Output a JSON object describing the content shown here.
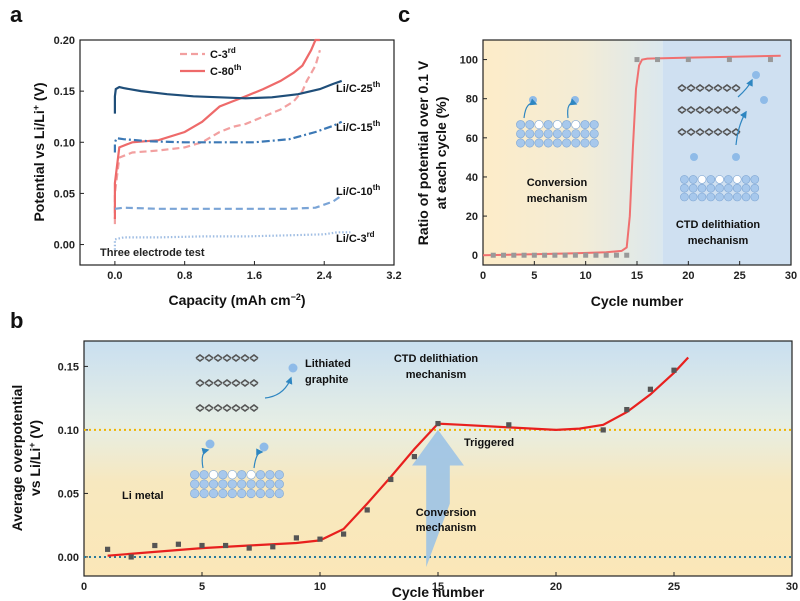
{
  "panel_labels": {
    "a": "a",
    "b": "b",
    "c": "c"
  },
  "colors": {
    "pink_dashed": "#f2a0a0",
    "red_solid": "#ee6a6a",
    "dark_blue": "#1f4e79",
    "mid_blue": "#3b78b5",
    "light_blue": "#7aa4d6",
    "very_light_blue": "#9fbde3",
    "fit_red": "#e8201e",
    "scatter_grey": "#555555",
    "yellow_dotted": "#f0b400",
    "teal_dotted": "#2a7a9b",
    "arrow_blue": "#9cc3e6",
    "c_line": "#f07070",
    "c_points": "#999999"
  },
  "chart_data": [
    {
      "id": "a",
      "type": "line",
      "title": "",
      "xlabel": "Capacity (mAh cm",
      "xlabel_sup": "−2",
      "xlabel_end": ")",
      "ylabel": "Potential vs Li/Li",
      "ylabel_sup": "+",
      "ylabel_end": " (V)",
      "xlim": [
        -0.4,
        3.2
      ],
      "ylim": [
        -0.02,
        0.2
      ],
      "xticks": [
        "0.0",
        "0.8",
        "1.6",
        "2.4",
        "3.2"
      ],
      "xtick_values": [
        0,
        0.8,
        1.6,
        2.4,
        3.2
      ],
      "yticks": [
        "0.00",
        "0.05",
        "0.10",
        "0.15",
        "0.20"
      ],
      "ytick_values": [
        0,
        0.05,
        0.1,
        0.15,
        0.2
      ],
      "annotation": "Three electrode test",
      "legend": [
        {
          "base": "C-3",
          "sup": "rd",
          "style": "dashed",
          "color_key": "pink_dashed"
        },
        {
          "base": "C-80",
          "sup": "th",
          "style": "solid",
          "color_key": "red_solid"
        }
      ],
      "series": [
        {
          "name": "C-3rd",
          "style": "dashed",
          "color_key": "pink_dashed",
          "x": [
            0.0,
            0.0,
            0.05,
            0.2,
            0.5,
            0.8,
            1.0,
            1.2,
            1.35,
            1.5,
            1.7,
            1.9,
            2.05,
            2.15,
            2.2,
            2.3,
            2.35
          ],
          "y": [
            0.02,
            0.05,
            0.085,
            0.09,
            0.092,
            0.095,
            0.1,
            0.11,
            0.115,
            0.118,
            0.125,
            0.132,
            0.14,
            0.15,
            0.16,
            0.175,
            0.19
          ]
        },
        {
          "name": "C-80th",
          "style": "solid",
          "color_key": "red_solid",
          "x": [
            0.0,
            0.0,
            0.05,
            0.2,
            0.5,
            0.8,
            1.0,
            1.2,
            1.35,
            1.5,
            1.7,
            1.9,
            2.05,
            2.15,
            2.25,
            2.3,
            2.35
          ],
          "y": [
            0.025,
            0.06,
            0.095,
            0.1,
            0.102,
            0.11,
            0.12,
            0.135,
            0.14,
            0.145,
            0.152,
            0.16,
            0.168,
            0.175,
            0.19,
            0.2,
            0.2
          ]
        },
        {
          "name": "Li/C-25th",
          "style": "solid",
          "color_key": "dark_blue",
          "label_base": "Li/C-25",
          "label_sup": "th",
          "x": [
            0.0,
            0.0,
            0.01,
            0.05,
            0.1,
            0.3,
            0.6,
            0.9,
            1.2,
            1.5,
            1.8,
            2.1,
            2.35,
            2.5,
            2.6
          ],
          "y": [
            0.128,
            0.145,
            0.152,
            0.154,
            0.153,
            0.15,
            0.147,
            0.145,
            0.144,
            0.143,
            0.144,
            0.147,
            0.152,
            0.157,
            0.16
          ]
        },
        {
          "name": "Li/C-15th",
          "style": "dashdot",
          "color_key": "mid_blue",
          "label_base": "Li/C-15",
          "label_sup": "th",
          "x": [
            0.0,
            0.0,
            0.02,
            0.1,
            0.4,
            0.8,
            1.2,
            1.6,
            2.0,
            2.3,
            2.5,
            2.6
          ],
          "y": [
            0.09,
            0.1,
            0.104,
            0.103,
            0.101,
            0.1,
            0.1,
            0.1,
            0.103,
            0.11,
            0.116,
            0.12
          ]
        },
        {
          "name": "Li/C-10th",
          "style": "dashed",
          "color_key": "light_blue",
          "label_base": "Li/C-10",
          "label_sup": "th",
          "x": [
            0.0,
            0.1,
            0.5,
            1.0,
            1.5,
            2.0,
            2.3,
            2.5,
            2.6
          ],
          "y": [
            0.035,
            0.036,
            0.035,
            0.035,
            0.035,
            0.035,
            0.036,
            0.042,
            0.048
          ]
        },
        {
          "name": "Li/C-3rd",
          "style": "dotted",
          "color_key": "very_light_blue",
          "label_base": "Li/C-3",
          "label_sup": "rd",
          "x": [
            0.0,
            0.0,
            0.1,
            0.5,
            1.0,
            1.5,
            2.0,
            2.4,
            2.55,
            2.7
          ],
          "y": [
            -0.005,
            0.005,
            0.007,
            0.007,
            0.008,
            0.008,
            0.009,
            0.01,
            0.012,
            0.012
          ]
        }
      ]
    },
    {
      "id": "b",
      "type": "scatter",
      "xlabel": "Cycle number",
      "ylabel_line1": "Average overpotential",
      "ylabel_line2_base": "vs Li/Li",
      "ylabel_line2_sup": "+",
      "ylabel_line2_end": " (V)",
      "xlim": [
        0,
        30
      ],
      "ylim": [
        -0.015,
        0.17
      ],
      "xticks": [
        "0",
        "5",
        "10",
        "15",
        "20",
        "25",
        "30"
      ],
      "xtick_values": [
        0,
        5,
        10,
        15,
        20,
        25,
        30
      ],
      "yticks": [
        "0.00",
        "0.05",
        "0.10",
        "0.15"
      ],
      "ytick_values": [
        0,
        0.05,
        0.1,
        0.15
      ],
      "reference_lines": [
        {
          "y": 0.1,
          "color_key": "yellow_dotted"
        },
        {
          "y": 0.0,
          "color_key": "teal_dotted"
        }
      ],
      "annotations": {
        "lithiated": [
          "Lithiated",
          "graphite"
        ],
        "li_metal": "Li metal",
        "ctd": [
          "CTD delithiation",
          "mechanism"
        ],
        "triggered": "Triggered",
        "conversion": [
          "Conversion",
          "mechanism"
        ]
      },
      "points": {
        "x": [
          1,
          2,
          3,
          4,
          5,
          6,
          7,
          8,
          9,
          10,
          11,
          12,
          13,
          14,
          15,
          18,
          22,
          23,
          24,
          25
        ],
        "y": [
          0.006,
          0.0,
          0.009,
          0.01,
          0.009,
          0.009,
          0.007,
          0.008,
          0.015,
          0.014,
          0.018,
          0.037,
          0.061,
          0.079,
          0.105,
          0.104,
          0.1,
          0.116,
          0.132,
          0.147
        ]
      },
      "fit": {
        "x": [
          1,
          3,
          5,
          7,
          9,
          10,
          11,
          12,
          13,
          14,
          15,
          16,
          18,
          20,
          21,
          22,
          23,
          24,
          25,
          25.6
        ],
        "y": [
          0.001,
          0.004,
          0.007,
          0.009,
          0.011,
          0.013,
          0.022,
          0.042,
          0.063,
          0.085,
          0.105,
          0.104,
          0.102,
          0.1,
          0.101,
          0.104,
          0.114,
          0.128,
          0.145,
          0.157
        ]
      }
    },
    {
      "id": "c",
      "type": "line",
      "xlabel": "Cycle number",
      "ylabel_line1": "Ratio of potential over 0.1 V",
      "ylabel_line2": "at each cycle  (%)",
      "xlim": [
        0,
        30
      ],
      "ylim": [
        -5,
        110
      ],
      "xticks": [
        "0",
        "5",
        "10",
        "15",
        "20",
        "25",
        "30"
      ],
      "xtick_values": [
        0,
        5,
        10,
        15,
        20,
        25,
        30
      ],
      "yticks": [
        "0",
        "20",
        "40",
        "60",
        "80",
        "100"
      ],
      "ytick_values": [
        0,
        20,
        40,
        60,
        80,
        100
      ],
      "region_split_x": 17.5,
      "annotations": {
        "conversion": [
          "Conversion",
          "mechanism"
        ],
        "ctd": [
          "CTD delithiation",
          "mechanism"
        ]
      },
      "points": {
        "x": [
          1,
          2,
          3,
          4,
          5,
          6,
          7,
          8,
          9,
          10,
          11,
          12,
          13,
          14,
          15,
          17,
          20,
          24,
          28
        ],
        "y": [
          0,
          0,
          0,
          0,
          0,
          0,
          0,
          0,
          0,
          0,
          0,
          0,
          0,
          0,
          100,
          100,
          100,
          100,
          100
        ]
      },
      "line": {
        "x": [
          0,
          3,
          6,
          9,
          12,
          13.5,
          14.0,
          14.3,
          14.6,
          14.9,
          15.2,
          15.5,
          16,
          20,
          25,
          29
        ],
        "y": [
          0,
          0.3,
          0.6,
          1.0,
          1.5,
          2.2,
          4.0,
          20,
          55,
          85,
          97,
          100,
          100.5,
          101,
          101.5,
          102
        ]
      }
    }
  ]
}
